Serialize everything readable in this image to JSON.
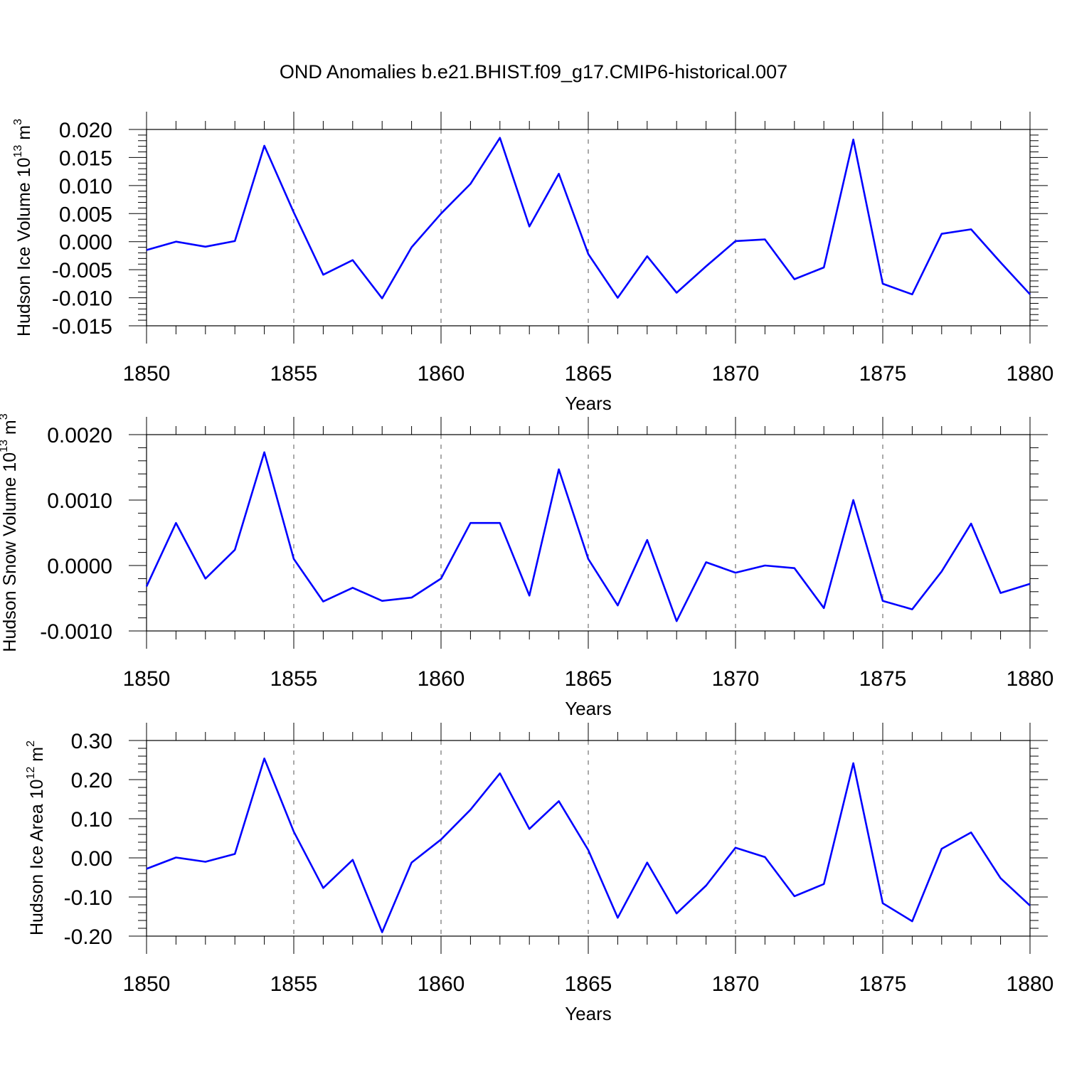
{
  "title": "OND Anomalies b.e21.BHIST.f09_g17.CMIP6-historical.007",
  "line_color": "#0000ff",
  "chart_data": [
    {
      "type": "line",
      "title": "OND Anomalies b.e21.BHIST.f09_g17.CMIP6-historical.007",
      "xlabel": "Years",
      "ylabel": {
        "main": "Hudson Ice Volume 10",
        "exp": "13",
        "unit": " m",
        "unit_exp": "3"
      },
      "xlim": [
        1850,
        1880
      ],
      "ylim": [
        -0.015,
        0.02
      ],
      "xticks": [
        1850,
        1855,
        1860,
        1865,
        1870,
        1875,
        1880
      ],
      "xtick_labels": [
        "1850",
        "1855",
        "1860",
        "1865",
        "1870",
        "1875",
        "1880"
      ],
      "yticks": [
        -0.015,
        -0.01,
        -0.005,
        0.0,
        0.005,
        0.01,
        0.015,
        0.02
      ],
      "ytick_labels": [
        "-0.015",
        "-0.010",
        "-0.005",
        "0.000",
        "0.005",
        "0.010",
        "0.015",
        "0.020"
      ],
      "grid": "vertical dashed at major x ticks",
      "x": [
        1850,
        1851,
        1852,
        1853,
        1854,
        1855,
        1856,
        1857,
        1858,
        1859,
        1860,
        1861,
        1862,
        1863,
        1864,
        1865,
        1866,
        1867,
        1868,
        1869,
        1870,
        1871,
        1872,
        1873,
        1874,
        1875,
        1876,
        1877,
        1878,
        1879,
        1880
      ],
      "values": [
        -0.0015,
        0.0,
        -0.0009,
        0.0001,
        0.0171,
        0.0052,
        -0.0059,
        -0.0033,
        -0.0101,
        -0.001,
        0.005,
        0.0103,
        0.0185,
        0.0027,
        0.0121,
        -0.0022,
        -0.01,
        -0.0026,
        -0.0091,
        -0.0044,
        0.0001,
        0.0004,
        -0.0067,
        -0.0046,
        0.0182,
        -0.0075,
        -0.0094,
        0.0014,
        0.0022,
        -0.0037,
        -0.0094
      ]
    },
    {
      "type": "line",
      "xlabel": "Years",
      "ylabel": {
        "main": "Hudson Snow Volume 10",
        "exp": "13",
        "unit": " m",
        "unit_exp": "3"
      },
      "xlim": [
        1850,
        1880
      ],
      "ylim": [
        -0.001,
        0.002
      ],
      "xticks": [
        1850,
        1855,
        1860,
        1865,
        1870,
        1875,
        1880
      ],
      "xtick_labels": [
        "1850",
        "1855",
        "1860",
        "1865",
        "1870",
        "1875",
        "1880"
      ],
      "yticks": [
        -0.001,
        0.0,
        0.001,
        0.002
      ],
      "ytick_labels": [
        "-0.0010",
        "0.0000",
        "0.0010",
        "0.0020"
      ],
      "grid": "vertical dashed at major x ticks",
      "x": [
        1850,
        1851,
        1852,
        1853,
        1854,
        1855,
        1856,
        1857,
        1858,
        1859,
        1860,
        1861,
        1862,
        1863,
        1864,
        1865,
        1866,
        1867,
        1868,
        1869,
        1870,
        1871,
        1872,
        1873,
        1874,
        1875,
        1876,
        1877,
        1878,
        1879,
        1880
      ],
      "values": [
        -0.00032,
        0.00065,
        -0.0002,
        0.00024,
        0.00173,
        0.0001,
        -0.00055,
        -0.00034,
        -0.00054,
        -0.00049,
        -0.0002,
        0.00065,
        0.00065,
        -0.00046,
        0.00147,
        0.0001,
        -0.00061,
        0.00039,
        -0.00085,
        5e-05,
        -0.00011,
        0.0,
        -4e-05,
        -0.00065,
        0.001,
        -0.00054,
        -0.00067,
        -9e-05,
        0.00064,
        -0.00042,
        -0.00028
      ]
    },
    {
      "type": "line",
      "xlabel": "Years",
      "ylabel": {
        "main": "Hudson Ice Area 10",
        "exp": "12",
        "unit": " m",
        "unit_exp": "2"
      },
      "xlim": [
        1850,
        1880
      ],
      "ylim": [
        -0.2,
        0.3
      ],
      "xticks": [
        1850,
        1855,
        1860,
        1865,
        1870,
        1875,
        1880
      ],
      "xtick_labels": [
        "1850",
        "1855",
        "1860",
        "1865",
        "1870",
        "1875",
        "1880"
      ],
      "yticks": [
        -0.2,
        -0.1,
        0.0,
        0.1,
        0.2,
        0.3
      ],
      "ytick_labels": [
        "-0.20",
        "-0.10",
        "0.00",
        "0.10",
        "0.20",
        "0.30"
      ],
      "grid": "vertical dashed at major x ticks",
      "x": [
        1850,
        1851,
        1852,
        1853,
        1854,
        1855,
        1856,
        1857,
        1858,
        1859,
        1860,
        1861,
        1862,
        1863,
        1864,
        1865,
        1866,
        1867,
        1868,
        1869,
        1870,
        1871,
        1872,
        1873,
        1874,
        1875,
        1876,
        1877,
        1878,
        1879,
        1880
      ],
      "values": [
        -0.028,
        0.001,
        -0.01,
        0.01,
        0.254,
        0.067,
        -0.077,
        -0.005,
        -0.19,
        -0.012,
        0.047,
        0.123,
        0.216,
        0.074,
        0.145,
        0.02,
        -0.153,
        -0.012,
        -0.142,
        -0.071,
        0.026,
        0.002,
        -0.098,
        -0.067,
        0.242,
        -0.116,
        -0.162,
        0.023,
        0.065,
        -0.052,
        -0.122
      ]
    }
  ]
}
